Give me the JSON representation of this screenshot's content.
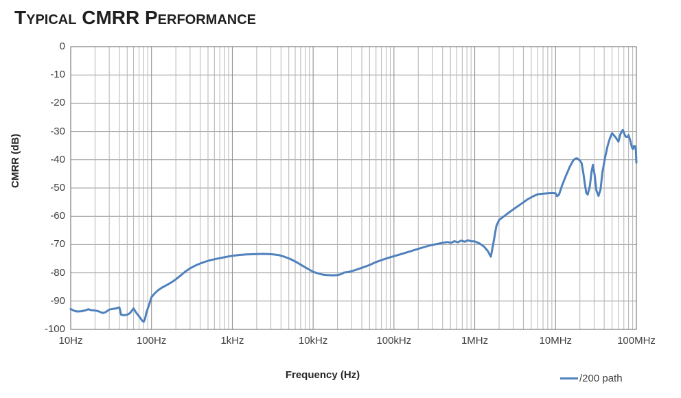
{
  "title": "Typical CMRR Performance",
  "colors": {
    "series_blue": "#4F81BD",
    "grid_minor": "#b4b4b4",
    "grid_major": "#878787",
    "grid_horizontal": "#9a9a9a",
    "plot_border": "#7f7f7f",
    "tick_text": "#3f3f3f",
    "title_text": "#1f1f1f"
  },
  "legend": {
    "position": "bottom-right",
    "entries": [
      {
        "label": "/200 path",
        "color": "#4F81BD"
      }
    ]
  },
  "chart_data": {
    "type": "line",
    "title": "Typical CMRR Performance",
    "xlabel": "Frequency (Hz)",
    "ylabel": "CMRR (dB)",
    "x_scale": "log",
    "xlim": [
      10,
      100000000
    ],
    "ylim": [
      -100,
      0
    ],
    "grid": "horizontal every 10 dB; vertical log minor lines each decade",
    "x_tick_labels": [
      "10Hz",
      "100Hz",
      "1kHz",
      "10kHz",
      "100kHz",
      "1MHz",
      "10MHz",
      "100MHz"
    ],
    "x_tick_values": [
      10,
      100,
      1000,
      10000,
      100000,
      1000000,
      10000000,
      100000000
    ],
    "y_tick_labels": [
      "0",
      "-10",
      "-20",
      "-30",
      "-40",
      "-50",
      "-60",
      "-70",
      "-80",
      "-90",
      "-100"
    ],
    "y_tick_values": [
      0,
      -10,
      -20,
      -30,
      -40,
      -50,
      -60,
      -70,
      -80,
      -90,
      -100
    ],
    "legend_entries": [
      "/200 path"
    ],
    "series": [
      {
        "name": "/200 path",
        "color": "#4F81BD",
        "points": [
          [
            10,
            -92.8
          ],
          [
            11,
            -93.4
          ],
          [
            12,
            -93.7
          ],
          [
            13.5,
            -93.6
          ],
          [
            15,
            -93.3
          ],
          [
            16.5,
            -92.9
          ],
          [
            18,
            -93.2
          ],
          [
            20,
            -93.3
          ],
          [
            22,
            -93.6
          ],
          [
            25,
            -94.2
          ],
          [
            27,
            -93.9
          ],
          [
            30,
            -93.0
          ],
          [
            33,
            -92.8
          ],
          [
            36,
            -92.6
          ],
          [
            40,
            -92.2
          ],
          [
            42,
            -94.8
          ],
          [
            46,
            -95.0
          ],
          [
            50,
            -94.8
          ],
          [
            54,
            -94.3
          ],
          [
            57,
            -93.4
          ],
          [
            60,
            -92.6
          ],
          [
            64,
            -93.9
          ],
          [
            68,
            -94.9
          ],
          [
            72,
            -95.8
          ],
          [
            76,
            -96.8
          ],
          [
            80,
            -97.3
          ],
          [
            83,
            -96.3
          ],
          [
            86,
            -94.3
          ],
          [
            90,
            -92.6
          ],
          [
            95,
            -90.6
          ],
          [
            100,
            -88.6
          ],
          [
            110,
            -87.2
          ],
          [
            120,
            -86.2
          ],
          [
            135,
            -85.2
          ],
          [
            155,
            -84.3
          ],
          [
            180,
            -83.2
          ],
          [
            200,
            -82.3
          ],
          [
            230,
            -80.9
          ],
          [
            260,
            -79.6
          ],
          [
            300,
            -78.4
          ],
          [
            350,
            -77.4
          ],
          [
            400,
            -76.7
          ],
          [
            460,
            -76.1
          ],
          [
            520,
            -75.6
          ],
          [
            600,
            -75.2
          ],
          [
            700,
            -74.8
          ],
          [
            800,
            -74.5
          ],
          [
            900,
            -74.2
          ],
          [
            1000,
            -74.0
          ],
          [
            1200,
            -73.7
          ],
          [
            1500,
            -73.5
          ],
          [
            1900,
            -73.4
          ],
          [
            2400,
            -73.3
          ],
          [
            3000,
            -73.4
          ],
          [
            3700,
            -73.7
          ],
          [
            4400,
            -74.3
          ],
          [
            5200,
            -75.1
          ],
          [
            6200,
            -76.2
          ],
          [
            7300,
            -77.4
          ],
          [
            8500,
            -78.5
          ],
          [
            10000,
            -79.6
          ],
          [
            11500,
            -80.2
          ],
          [
            13000,
            -80.6
          ],
          [
            15000,
            -80.8
          ],
          [
            17500,
            -80.9
          ],
          [
            20000,
            -80.8
          ],
          [
            22500,
            -80.4
          ],
          [
            24000,
            -79.9
          ],
          [
            27000,
            -79.7
          ],
          [
            31000,
            -79.3
          ],
          [
            36000,
            -78.7
          ],
          [
            42000,
            -78.0
          ],
          [
            50000,
            -77.2
          ],
          [
            60000,
            -76.2
          ],
          [
            72000,
            -75.4
          ],
          [
            85000,
            -74.7
          ],
          [
            100000,
            -74.1
          ],
          [
            125000,
            -73.3
          ],
          [
            155000,
            -72.5
          ],
          [
            190000,
            -71.7
          ],
          [
            230000,
            -71.0
          ],
          [
            280000,
            -70.3
          ],
          [
            340000,
            -69.8
          ],
          [
            400000,
            -69.4
          ],
          [
            460000,
            -69.1
          ],
          [
            510000,
            -69.4
          ],
          [
            560000,
            -68.8
          ],
          [
            620000,
            -69.2
          ],
          [
            680000,
            -68.6
          ],
          [
            750000,
            -69.0
          ],
          [
            820000,
            -68.5
          ],
          [
            900000,
            -68.8
          ],
          [
            1000000,
            -68.9
          ],
          [
            1150000,
            -69.6
          ],
          [
            1300000,
            -70.7
          ],
          [
            1450000,
            -72.3
          ],
          [
            1580000,
            -74.3
          ],
          [
            1700000,
            -69.5
          ],
          [
            1850000,
            -63.5
          ],
          [
            2000000,
            -61.3
          ],
          [
            2300000,
            -60.0
          ],
          [
            2700000,
            -58.5
          ],
          [
            3200000,
            -57.0
          ],
          [
            3800000,
            -55.5
          ],
          [
            4500000,
            -54.0
          ],
          [
            5200000,
            -53.0
          ],
          [
            6000000,
            -52.2
          ],
          [
            7000000,
            -52.0
          ],
          [
            8000000,
            -51.9
          ],
          [
            9000000,
            -51.8
          ],
          [
            10000000,
            -51.9
          ],
          [
            10400000,
            -52.9
          ],
          [
            11000000,
            -52.4
          ],
          [
            12000000,
            -49.2
          ],
          [
            13500000,
            -45.5
          ],
          [
            15000000,
            -42.5
          ],
          [
            16500000,
            -40.3
          ],
          [
            17500000,
            -39.6
          ],
          [
            18500000,
            -39.5
          ],
          [
            20000000,
            -40.3
          ],
          [
            21000000,
            -41.2
          ],
          [
            22000000,
            -44.5
          ],
          [
            23000000,
            -48.5
          ],
          [
            24000000,
            -51.7
          ],
          [
            25000000,
            -52.3
          ],
          [
            26500000,
            -49.5
          ],
          [
            28000000,
            -44.0
          ],
          [
            29000000,
            -41.8
          ],
          [
            30500000,
            -45.5
          ],
          [
            32000000,
            -50.8
          ],
          [
            34000000,
            -52.8
          ],
          [
            36000000,
            -50.5
          ],
          [
            38000000,
            -44.5
          ],
          [
            41000000,
            -39.2
          ],
          [
            44000000,
            -35.2
          ],
          [
            47000000,
            -32.4
          ],
          [
            50000000,
            -30.6
          ],
          [
            53000000,
            -31.4
          ],
          [
            57000000,
            -32.6
          ],
          [
            60000000,
            -33.6
          ],
          [
            63000000,
            -31.2
          ],
          [
            66000000,
            -29.9
          ],
          [
            68000000,
            -29.5
          ],
          [
            71000000,
            -30.9
          ],
          [
            74000000,
            -31.9
          ],
          [
            78000000,
            -31.9
          ],
          [
            80000000,
            -31.3
          ],
          [
            84000000,
            -33.2
          ],
          [
            88000000,
            -35.6
          ],
          [
            91000000,
            -36.2
          ],
          [
            94000000,
            -35.1
          ],
          [
            96000000,
            -35.7
          ],
          [
            98000000,
            -35.3
          ],
          [
            100000000,
            -41.0
          ]
        ]
      }
    ]
  }
}
